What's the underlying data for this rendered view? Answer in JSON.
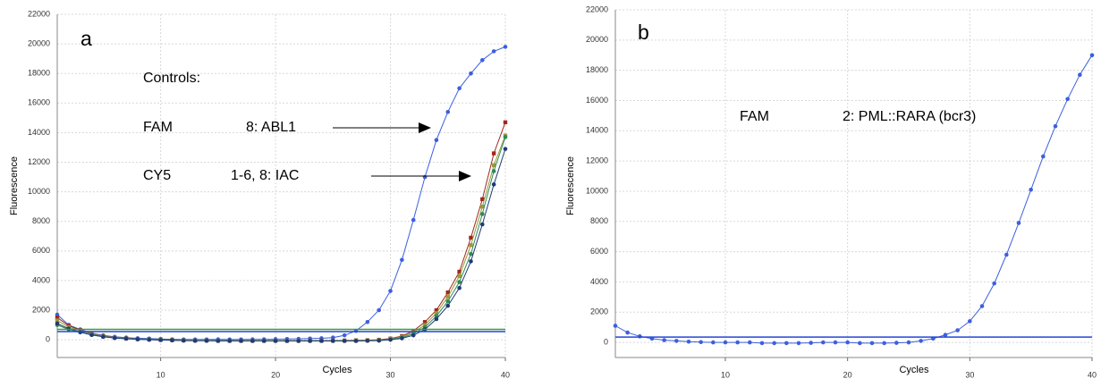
{
  "chart_data": [
    {
      "type": "line",
      "panel_label": "a",
      "xlabel": "Cycles",
      "ylabel": "Fluorescence",
      "annotations": [
        "Controls:",
        "FAM",
        "8: ABL1",
        "CY5",
        "1-6, 8: IAC"
      ],
      "x": [
        1,
        2,
        3,
        4,
        5,
        6,
        7,
        8,
        9,
        10,
        11,
        12,
        13,
        14,
        15,
        16,
        17,
        18,
        19,
        20,
        21,
        22,
        23,
        24,
        25,
        26,
        27,
        28,
        29,
        30,
        31,
        32,
        33,
        34,
        35,
        36,
        37,
        38,
        39,
        40
      ],
      "xlim": [
        1,
        40
      ],
      "xticks": [
        10,
        20,
        30,
        40
      ],
      "ylim": [
        -1200,
        22000
      ],
      "yticks": [
        0,
        2000,
        4000,
        6000,
        8000,
        10000,
        12000,
        14000,
        16000,
        18000,
        20000,
        22000
      ],
      "grid": true,
      "thresholds": [
        {
          "value": 700,
          "color": "#3a9a3a"
        },
        {
          "value": 550,
          "color": "#2446d8"
        }
      ],
      "series": [
        {
          "color": "#3c5fe0",
          "marker": "circle",
          "values": [
            1700,
            1000,
            700,
            450,
            300,
            200,
            150,
            100,
            80,
            50,
            30,
            20,
            20,
            20,
            30,
            20,
            20,
            30,
            30,
            40,
            50,
            60,
            80,
            100,
            150,
            300,
            600,
            1200,
            2000,
            3300,
            5400,
            8100,
            11000,
            13500,
            15400,
            17000,
            18000,
            18900,
            19500,
            19800
          ]
        },
        {
          "color": "#a0281e",
          "marker": "square",
          "values": [
            1500,
            950,
            650,
            400,
            250,
            150,
            100,
            50,
            30,
            0,
            -20,
            -40,
            -50,
            -50,
            -60,
            -60,
            -60,
            -60,
            -60,
            -60,
            -60,
            -60,
            -50,
            -50,
            -50,
            -50,
            -40,
            -30,
            0,
            80,
            250,
            600,
            1200,
            2000,
            3200,
            4600,
            6900,
            9500,
            12600,
            14700
          ]
        },
        {
          "color": "#9a9a3a",
          "marker": "square",
          "values": [
            1300,
            850,
            600,
            380,
            230,
            140,
            90,
            40,
            20,
            0,
            -20,
            -40,
            -50,
            -50,
            -60,
            -60,
            -60,
            -60,
            -60,
            -60,
            -60,
            -60,
            -60,
            -60,
            -60,
            -60,
            -60,
            -50,
            -20,
            50,
            200,
            500,
            1000,
            1800,
            2900,
            4300,
            6400,
            9000,
            11800,
            13800
          ]
        },
        {
          "color": "#2e8b57",
          "marker": "circle",
          "values": [
            1000,
            700,
            500,
            320,
            200,
            120,
            80,
            40,
            10,
            -10,
            -30,
            -50,
            -60,
            -60,
            -60,
            -60,
            -70,
            -70,
            -70,
            -70,
            -70,
            -70,
            -70,
            -70,
            -70,
            -70,
            -70,
            -60,
            -40,
            30,
            150,
            400,
            850,
            1600,
            2600,
            3900,
            5800,
            8500,
            11400,
            13700
          ]
        },
        {
          "color": "#1f3a78",
          "marker": "circle",
          "values": [
            1100,
            750,
            520,
            330,
            200,
            120,
            70,
            30,
            0,
            -20,
            -40,
            -60,
            -70,
            -70,
            -80,
            -80,
            -80,
            -80,
            -80,
            -80,
            -80,
            -80,
            -80,
            -80,
            -80,
            -80,
            -80,
            -70,
            -60,
            0,
            100,
            300,
            700,
            1400,
            2300,
            3500,
            5300,
            7800,
            10500,
            12900
          ]
        }
      ]
    },
    {
      "type": "line",
      "panel_label": "b",
      "xlabel": "Cycles",
      "ylabel": "Fluorescence",
      "annotations": [
        "FAM",
        "2: PML::RARA (bcr3)"
      ],
      "x": [
        1,
        2,
        3,
        4,
        5,
        6,
        7,
        8,
        9,
        10,
        11,
        12,
        13,
        14,
        15,
        16,
        17,
        18,
        19,
        20,
        21,
        22,
        23,
        24,
        25,
        26,
        27,
        28,
        29,
        30,
        31,
        32,
        33,
        34,
        35,
        36,
        37,
        38,
        39,
        40
      ],
      "xlim": [
        1,
        40
      ],
      "xticks": [
        10,
        20,
        30,
        40
      ],
      "ylim": [
        -1000,
        22000
      ],
      "yticks": [
        0,
        2000,
        4000,
        6000,
        8000,
        10000,
        12000,
        14000,
        16000,
        18000,
        20000,
        22000
      ],
      "grid": true,
      "thresholds": [
        {
          "value": 350,
          "color": "#2446d8"
        }
      ],
      "series": [
        {
          "color": "#3c5fe0",
          "marker": "circle",
          "values": [
            1100,
            650,
            400,
            250,
            150,
            100,
            50,
            20,
            0,
            0,
            0,
            0,
            -50,
            -50,
            -50,
            -50,
            -30,
            0,
            0,
            0,
            -50,
            -50,
            -50,
            -30,
            0,
            100,
            250,
            500,
            800,
            1400,
            2400,
            3900,
            5800,
            7900,
            10100,
            12300,
            14300,
            16100,
            17700,
            19000
          ]
        }
      ]
    }
  ]
}
